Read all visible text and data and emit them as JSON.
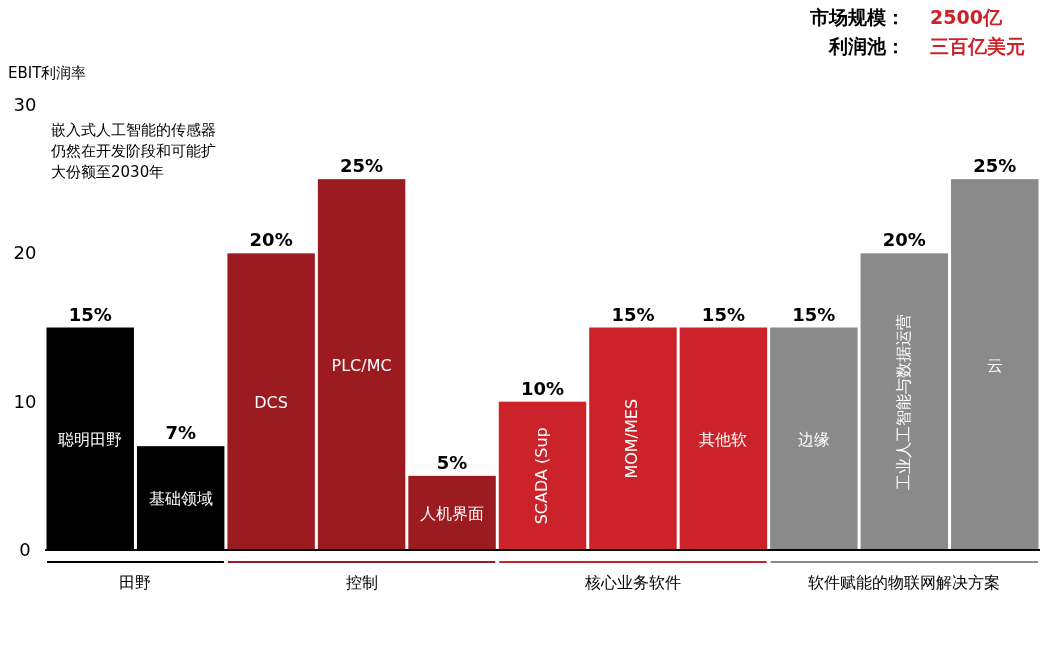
{
  "chart_data": {
    "type": "bar",
    "ylabel": "EBIT利润率",
    "categories": [
      "聪明田野",
      "基础领域",
      "DCS",
      "PLC/MC",
      "人机界面",
      "SCADA (Sup",
      "MOM/MES",
      "其他软",
      "边缘",
      "工业人工智能与数据运营",
      "云"
    ],
    "values": [
      15,
      7,
      20,
      25,
      5,
      10,
      15,
      15,
      15,
      20,
      25
    ],
    "colors": [
      "#000000",
      "#000000",
      "#9b1b20",
      "#9b1b20",
      "#9b1b20",
      "#cc2229",
      "#cc2229",
      "#cc2229",
      "#8a8a8a",
      "#8a8a8a",
      "#8a8a8a"
    ],
    "value_labels": [
      "15%",
      "7%",
      "20%",
      "25%",
      "5%",
      "10%",
      "15%",
      "15%",
      "15%",
      "20%",
      "25%"
    ],
    "ylim": [
      0,
      30
    ],
    "yticks": [
      0,
      10,
      20,
      30
    ],
    "annotations": [
      "市场规模：",
      "2500亿",
      "利润池：",
      "三百亿美元",
      "嵌入式人工智能的传感器仍然在开发阶段和可能扩大份额至2030年",
      "田野",
      "控制",
      "核心业务软件",
      "软件赋能的物联网解决方案"
    ]
  }
}
